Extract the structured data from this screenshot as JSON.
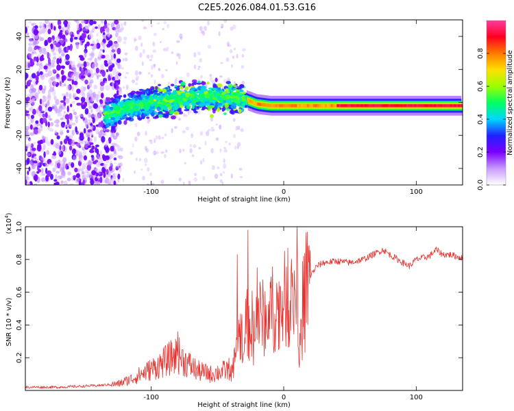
{
  "page_title": "C2E5.2026.084.01.53.G16",
  "chart_data": [
    {
      "type": "heatmap",
      "title": "C2E5.2026.084.01.53.G16",
      "xlabel": "Height of straight line (km)",
      "ylabel": "Frequency (Hz)",
      "xlim": [
        -195,
        135
      ],
      "ylim": [
        -50,
        50
      ],
      "xticks": [
        -100,
        0,
        100
      ],
      "xtick_labels": [
        "-100",
        "0",
        "100"
      ],
      "yticks": [
        -40,
        -20,
        0,
        20,
        40
      ],
      "ytick_labels": [
        "-40",
        "-20",
        "0",
        "20",
        "40"
      ],
      "grid": false,
      "colorbar": {
        "label": "Normalized spectral amplitude",
        "range": [
          0.0,
          1.0
        ],
        "ticks": [
          0.0,
          0.2,
          0.4,
          0.6,
          0.8
        ],
        "tick_labels": [
          "0.0",
          "0.2",
          "0.4",
          "0.6",
          "0.8"
        ],
        "colors": [
          "#ffffff",
          "#c89bff",
          "#7b00ff",
          "#2020ff",
          "#00d8ff",
          "#00ff60",
          "#9cff00",
          "#ffe000",
          "#ff7a00",
          "#ff0020",
          "#ff3aa0"
        ]
      },
      "signal_track": {
        "description_free_centerline": [
          [
            -130,
            -7
          ],
          [
            -120,
            -3
          ],
          [
            -110,
            -2
          ],
          [
            -100,
            0
          ],
          [
            -90,
            1
          ],
          [
            -80,
            2
          ],
          [
            -70,
            3
          ],
          [
            -60,
            3
          ],
          [
            -50,
            3
          ],
          [
            -40,
            3
          ],
          [
            -30,
            2
          ],
          [
            -20,
            -1
          ],
          [
            -10,
            -2
          ],
          [
            0,
            -2
          ],
          [
            20,
            -2
          ],
          [
            50,
            -2
          ],
          [
            80,
            -2
          ],
          [
            110,
            -2
          ],
          [
            135,
            -2
          ]
        ]
      }
    },
    {
      "type": "line",
      "xlabel": "Height of straight line (km)",
      "ylabel": "SNR (10 * v/v)",
      "y_scale_label": "(x10",
      "y_scale_exponent": "4",
      "y_scale_suffix": ")",
      "xlim": [
        -195,
        135
      ],
      "ylim": [
        0,
        1.0
      ],
      "xticks": [
        -100,
        0,
        100
      ],
      "xtick_labels": [
        "-100",
        "0",
        "100"
      ],
      "yticks": [
        0.2,
        0.4,
        0.6,
        0.8,
        1.0
      ],
      "ytick_labels": [
        "0.2",
        "0.4",
        "0.6",
        "0.8",
        "1.0"
      ],
      "grid": false,
      "series": [
        {
          "name": "SNR",
          "color": "#e8302c",
          "envelope": {
            "x": [
              -195,
              -170,
              -140,
              -125,
              -115,
              -105,
              -95,
              -85,
              -80,
              -75,
              -65,
              -55,
              -45,
              -38,
              -35,
              -30,
              -25,
              -20,
              -15,
              -10,
              -5,
              0,
              5,
              10,
              12,
              15,
              20,
              25,
              30,
              40,
              50,
              60,
              70,
              75,
              80,
              90,
              95,
              100,
              110,
              115,
              120,
              125,
              135
            ],
            "y": [
              0.02,
              0.02,
              0.03,
              0.04,
              0.07,
              0.11,
              0.15,
              0.2,
              0.22,
              0.18,
              0.12,
              0.1,
              0.12,
              0.14,
              0.3,
              0.42,
              0.38,
              0.46,
              0.44,
              0.5,
              0.5,
              0.55,
              0.56,
              0.6,
              0.2,
              0.62,
              0.7,
              0.76,
              0.78,
              0.79,
              0.78,
              0.8,
              0.84,
              0.86,
              0.83,
              0.78,
              0.76,
              0.8,
              0.82,
              0.86,
              0.83,
              0.83,
              0.81
            ]
          },
          "spikes": [
            [
              -80,
              0.36
            ],
            [
              -35,
              0.83
            ],
            [
              -27,
              0.98
            ],
            [
              -20,
              0.75
            ],
            [
              10,
              1.0
            ],
            [
              3,
              0.87
            ],
            [
              12,
              0.14
            ]
          ]
        }
      ]
    }
  ]
}
